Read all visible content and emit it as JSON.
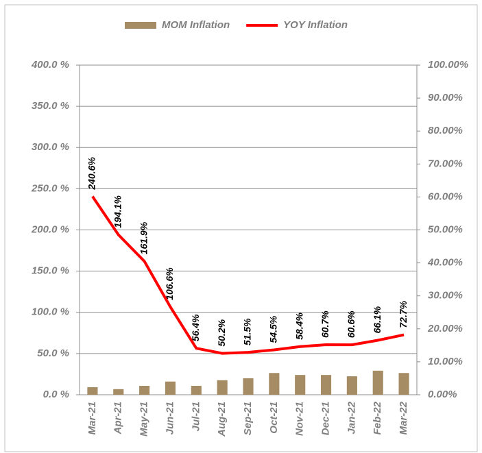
{
  "chart_data": {
    "type": "bar-line",
    "categories": [
      "Mar-21",
      "Apr-21",
      "May-21",
      "Jun-21",
      "Jul-21",
      "Aug-21",
      "Sep-21",
      "Oct-21",
      "Nov-21",
      "Dec-21",
      "Jan-22",
      "Feb-22",
      "Mar-22"
    ],
    "series": [
      {
        "name": "MOM Inflation",
        "type": "bar",
        "axis": "y2",
        "color": "#a58c64",
        "values": [
          2.3,
          1.7,
          2.7,
          4.0,
          2.7,
          4.4,
          5.0,
          6.6,
          6.0,
          6.0,
          5.6,
          7.3,
          6.6
        ]
      },
      {
        "name": "YOY Inflation",
        "type": "line",
        "axis": "y",
        "color": "#ff0000",
        "values": [
          240.6,
          194.1,
          161.9,
          106.6,
          56.4,
          50.2,
          51.5,
          54.5,
          58.4,
          60.7,
          60.6,
          66.1,
          72.7
        ],
        "value_labels": [
          "240.6%",
          "194.1%",
          "161.9%",
          "106.6%",
          "56.4%",
          "50.2%",
          "51.5%",
          "54.5%",
          "58.4%",
          "60.7%",
          "60.6%",
          "66.1%",
          "72.7%"
        ]
      }
    ],
    "ylim": [
      0,
      400
    ],
    "yticks": [
      {
        "value": 0,
        "label": "0.0 %"
      },
      {
        "value": 50,
        "label": "50.0 %"
      },
      {
        "value": 100,
        "label": "100.0 %"
      },
      {
        "value": 150,
        "label": "150.0 %"
      },
      {
        "value": 200,
        "label": "200.0 %"
      },
      {
        "value": 250,
        "label": "250.0 %"
      },
      {
        "value": 300,
        "label": "300.0 %"
      },
      {
        "value": 350,
        "label": "350.0 %"
      },
      {
        "value": 400,
        "label": "400.0 %"
      }
    ],
    "y2lim": [
      0,
      100
    ],
    "y2ticks": [
      {
        "value": 0,
        "label": "0.00%"
      },
      {
        "value": 10,
        "label": "10.00%"
      },
      {
        "value": 20,
        "label": "20.00%"
      },
      {
        "value": 30,
        "label": "30.00%"
      },
      {
        "value": 40,
        "label": "40.00%"
      },
      {
        "value": 50,
        "label": "50.00%"
      },
      {
        "value": 60,
        "label": "60.00%"
      },
      {
        "value": 70,
        "label": "70.00%"
      },
      {
        "value": 80,
        "label": "80.00%"
      },
      {
        "value": 90,
        "label": "90.00%"
      },
      {
        "value": 100,
        "label": "100.00%"
      }
    ],
    "grid": true,
    "legend": "top"
  }
}
